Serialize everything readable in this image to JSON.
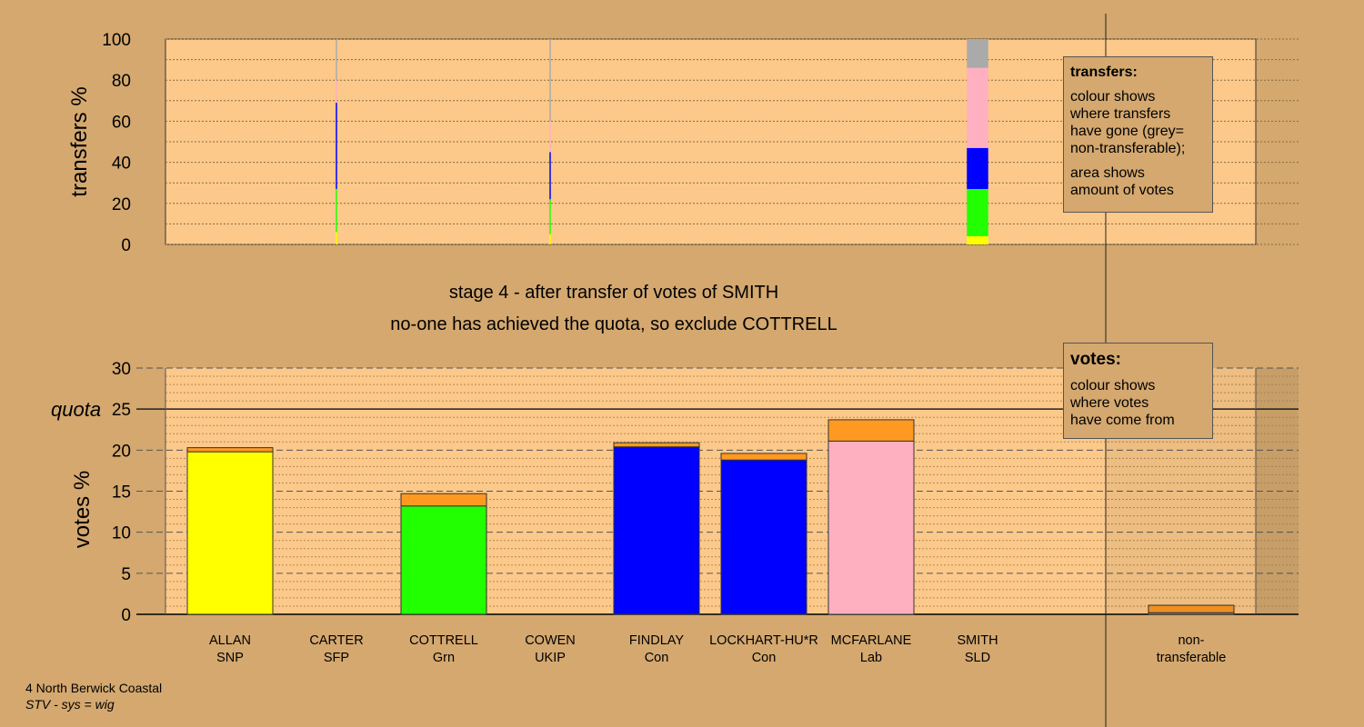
{
  "stage": {
    "line1": "stage 4 - after transfer of votes of SMITH",
    "line2": "no-one has achieved the quota, so exclude COTTRELL"
  },
  "legend_transfers": {
    "title": "transfers:",
    "lines": [
      "colour shows",
      "where transfers",
      "have gone (grey=",
      "non-transferable);"
    ],
    "lines2": [
      "area shows",
      "amount of votes"
    ]
  },
  "legend_votes": {
    "title": "votes:",
    "lines": [
      "colour shows",
      "where votes",
      "have come from"
    ]
  },
  "footer": {
    "ward": "4 North Berwick Coastal",
    "system": "STV - sys = wig"
  },
  "colors": {
    "background": "#d4a86f",
    "plot_background": "#fcc98a",
    "SNP": "#ffff00",
    "Grn": "#22ff00",
    "Con": "#0000ff",
    "Lab": "#ffb0c0",
    "transfer": "#ff9922",
    "non_transferable": "#aaaaaa"
  },
  "chart_data": [
    {
      "type": "bar",
      "name": "transfers",
      "ylabel": "transfers %",
      "ylim": [
        0,
        100
      ],
      "yticks": [
        0,
        20,
        40,
        60,
        80,
        100
      ],
      "grid": true,
      "note": "stacked transfer bars; bar width reflects amount of votes",
      "bars": [
        {
          "candidate": "CARTER",
          "relative_width": 0.02,
          "segments": [
            {
              "party": "SNP",
              "from": 0,
              "to": 6
            },
            {
              "party": "Grn",
              "from": 6,
              "to": 27
            },
            {
              "party": "Con",
              "from": 27,
              "to": 69
            },
            {
              "party": "Lab",
              "from": 69,
              "to": 80
            },
            {
              "party": "non-transferable",
              "from": 80,
              "to": 100
            }
          ]
        },
        {
          "candidate": "COWEN",
          "relative_width": 0.02,
          "segments": [
            {
              "party": "SNP",
              "from": 0,
              "to": 5
            },
            {
              "party": "Grn",
              "from": 5,
              "to": 22
            },
            {
              "party": "Con",
              "from": 22,
              "to": 45
            },
            {
              "party": "Lab",
              "from": 45,
              "to": 60
            },
            {
              "party": "non-transferable",
              "from": 60,
              "to": 100
            }
          ]
        },
        {
          "candidate": "SMITH",
          "relative_width": 1,
          "segments": [
            {
              "party": "SNP",
              "from": 0,
              "to": 4
            },
            {
              "party": "Grn",
              "from": 4,
              "to": 27
            },
            {
              "party": "Con",
              "from": 27,
              "to": 47
            },
            {
              "party": "Lab",
              "from": 47,
              "to": 86
            },
            {
              "party": "non-transferable",
              "from": 86,
              "to": 100
            }
          ]
        }
      ]
    },
    {
      "type": "bar",
      "name": "votes",
      "ylabel": "votes %",
      "ylim": [
        0,
        30
      ],
      "yticks": [
        0,
        5,
        10,
        15,
        20,
        25,
        30
      ],
      "quota": 25,
      "quota_label": "quota",
      "grid": true,
      "categories": [
        "ALLAN",
        "CARTER",
        "COTTRELL",
        "COWEN",
        "FINDLAY",
        "LOCKHART-HU*R",
        "MCFARLANE",
        "SMITH",
        "non-"
      ],
      "parties": [
        "SNP",
        "SFP",
        "Grn",
        "UKIP",
        "Con",
        "Con",
        "Lab",
        "SLD",
        "transferable"
      ],
      "first_preference": [
        19.8,
        0,
        13.2,
        0,
        20.4,
        18.8,
        21.1,
        0,
        0.2
      ],
      "transferred": [
        0.5,
        0,
        1.5,
        0,
        0.5,
        0.8,
        2.6,
        0,
        0.9
      ],
      "bar_party_colors": [
        "SNP",
        null,
        "Grn",
        null,
        "Con",
        "Con",
        "Lab",
        null,
        "non-transferable"
      ]
    }
  ]
}
